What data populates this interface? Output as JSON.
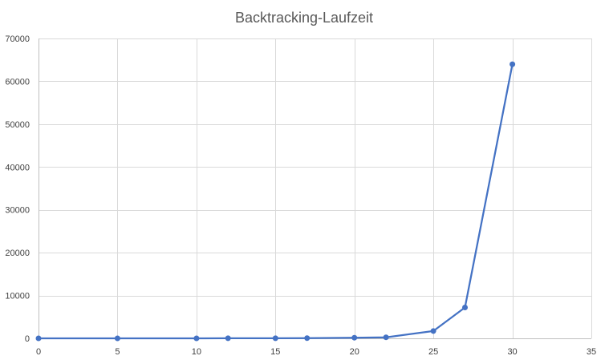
{
  "chart_data": {
    "type": "scatter",
    "title": "Backtracking-Laufzeit",
    "xlabel": "",
    "ylabel": "",
    "xlim": [
      0,
      35
    ],
    "ylim": [
      0,
      70000
    ],
    "x_ticks": [
      0,
      5,
      10,
      15,
      20,
      25,
      30,
      35
    ],
    "y_ticks": [
      0,
      10000,
      20000,
      30000,
      40000,
      50000,
      60000,
      70000
    ],
    "grid": true,
    "legend": "none",
    "series": [
      {
        "color": "#4472C4",
        "x": [
          0,
          5,
          10,
          12,
          15,
          17,
          20,
          22,
          25,
          27,
          30
        ],
        "y": [
          0,
          0,
          5,
          10,
          20,
          50,
          150,
          250,
          1700,
          7200,
          64000
        ]
      }
    ]
  }
}
